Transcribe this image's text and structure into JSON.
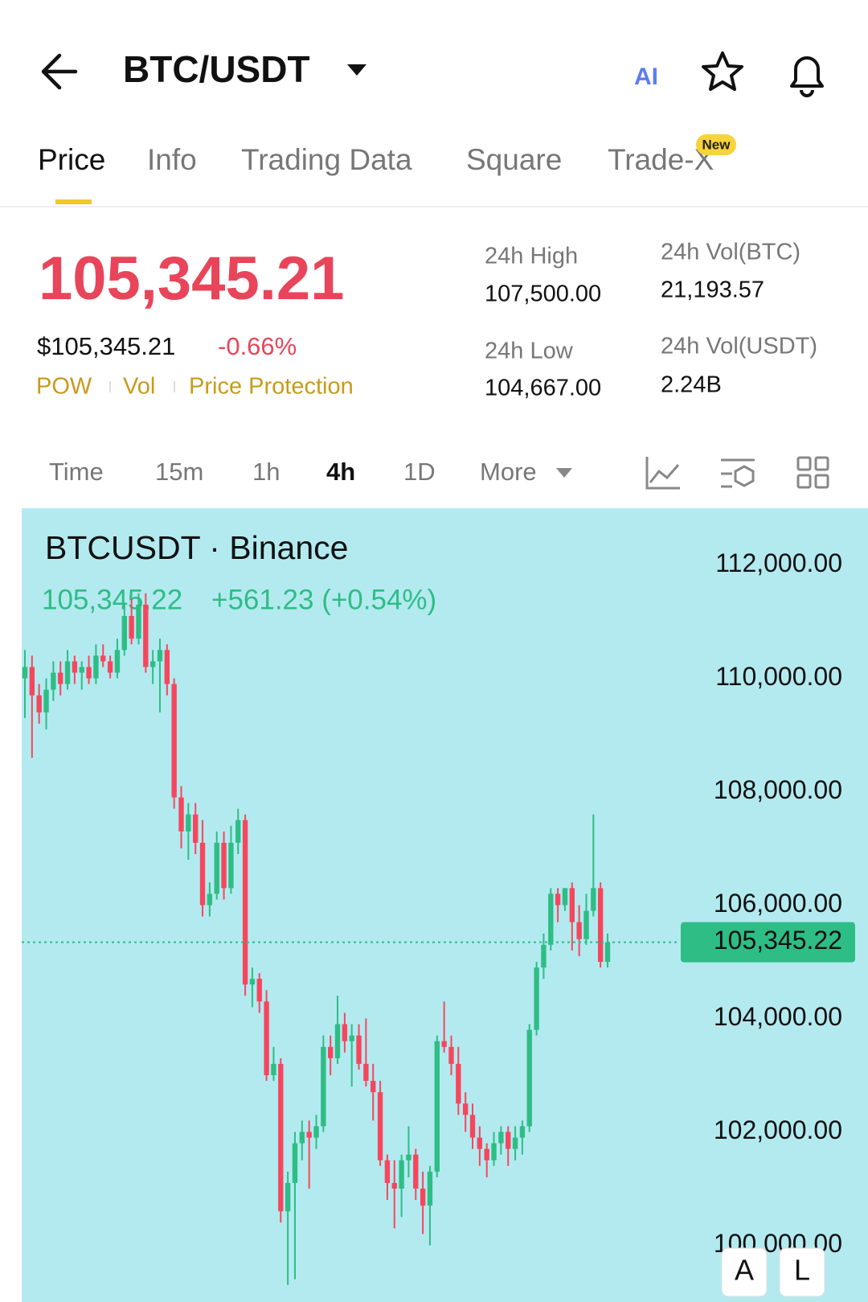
{
  "header": {
    "title": "BTC/USDT",
    "ai": "AI"
  },
  "tabs": [
    "Price",
    "Info",
    "Trading Data",
    "Square",
    "Trade-X"
  ],
  "tab_badge": "New",
  "ticker": {
    "price": "105,345.21",
    "usd_price": "$105,345.21",
    "change": "-0.66%",
    "tags": [
      "POW",
      "Vol",
      "Price Protection"
    ],
    "stats": [
      {
        "label": "24h High",
        "value": "107,500.00"
      },
      {
        "label": "24h Low",
        "value": "104,667.00"
      },
      {
        "label": "24h Vol(BTC)",
        "value": "21,193.57"
      },
      {
        "label": "24h Vol(USDT)",
        "value": "2.24B"
      }
    ]
  },
  "intervals": [
    "Time",
    "15m",
    "1h",
    "4h",
    "1D",
    "More"
  ],
  "chart_data": {
    "type": "candlestick",
    "title": "BTCUSDT · Binance",
    "last": "105,345.22",
    "change": "+561.23 (+0.54%)",
    "up_color": "#2ebd85",
    "down_color": "#f6465d",
    "background": "#b3eaf0",
    "grid": false,
    "ylim": [
      99000,
      113000
    ],
    "yticks": [
      {
        "value": 100000,
        "label": "100,000.00"
      },
      {
        "value": 102000,
        "label": "102,000.00"
      },
      {
        "value": 104000,
        "label": "104,000.00"
      },
      {
        "value": 106000,
        "label": "106,000.00"
      },
      {
        "value": 108000,
        "label": "108,000.00"
      },
      {
        "value": 110000,
        "label": "110,000.00"
      },
      {
        "value": 112000,
        "label": "112,000.00"
      }
    ],
    "current_price": {
      "value": 105345.22,
      "label": "105,345.22"
    },
    "candles": [
      [
        110000,
        110500,
        109300,
        110200
      ],
      [
        110200,
        110400,
        108600,
        109700
      ],
      [
        109700,
        109900,
        109200,
        109400
      ],
      [
        109400,
        110000,
        109100,
        109800
      ],
      [
        109800,
        110300,
        109600,
        110100
      ],
      [
        110100,
        110300,
        109700,
        109900
      ],
      [
        109900,
        110500,
        109800,
        110300
      ],
      [
        110300,
        110400,
        109900,
        110100
      ],
      [
        110100,
        110300,
        109800,
        110200
      ],
      [
        110200,
        110400,
        109900,
        110000
      ],
      [
        110000,
        110600,
        109900,
        110400
      ],
      [
        110400,
        110600,
        110200,
        110300
      ],
      [
        110300,
        110400,
        110000,
        110100
      ],
      [
        110100,
        110700,
        110000,
        110500
      ],
      [
        110500,
        111300,
        110400,
        111100
      ],
      [
        111100,
        111400,
        110600,
        110700
      ],
      [
        110700,
        111500,
        110600,
        111300
      ],
      [
        111300,
        111500,
        110100,
        110200
      ],
      [
        110200,
        110500,
        109900,
        110300
      ],
      [
        110300,
        110700,
        109400,
        110500
      ],
      [
        110500,
        110600,
        109700,
        109900
      ],
      [
        109900,
        110000,
        107700,
        107900
      ],
      [
        107900,
        108100,
        107000,
        107300
      ],
      [
        107300,
        107800,
        106800,
        107600
      ],
      [
        107600,
        107800,
        106900,
        107100
      ],
      [
        107100,
        107500,
        105800,
        106000
      ],
      [
        106000,
        106400,
        105800,
        106200
      ],
      [
        106200,
        107300,
        106100,
        107100
      ],
      [
        107100,
        107300,
        106100,
        106300
      ],
      [
        106300,
        107400,
        106200,
        107100
      ],
      [
        107100,
        107700,
        106900,
        107500
      ],
      [
        107500,
        107600,
        104400,
        104600
      ],
      [
        104600,
        104900,
        104200,
        104700
      ],
      [
        104700,
        104800,
        104100,
        104300
      ],
      [
        104300,
        104500,
        102900,
        103000
      ],
      [
        103000,
        103500,
        102900,
        103200
      ],
      [
        103200,
        103300,
        100400,
        100600
      ],
      [
        100600,
        101300,
        99300,
        101100
      ],
      [
        101100,
        102000,
        99400,
        101800
      ],
      [
        101800,
        102200,
        101500,
        102000
      ],
      [
        102000,
        102200,
        101000,
        101900
      ],
      [
        101900,
        102300,
        101700,
        102100
      ],
      [
        102100,
        103700,
        102000,
        103500
      ],
      [
        103500,
        103700,
        103000,
        103300
      ],
      [
        103300,
        104400,
        103200,
        103900
      ],
      [
        103900,
        104100,
        103400,
        103600
      ],
      [
        103600,
        103900,
        102800,
        103700
      ],
      [
        103700,
        103900,
        103100,
        103200
      ],
      [
        103200,
        104000,
        102800,
        102900
      ],
      [
        102900,
        103200,
        102200,
        102700
      ],
      [
        102700,
        102900,
        101400,
        101500
      ],
      [
        101500,
        101600,
        100800,
        101100
      ],
      [
        101100,
        101500,
        100300,
        101000
      ],
      [
        101000,
        101600,
        100500,
        101500
      ],
      [
        101500,
        102100,
        101200,
        101600
      ],
      [
        101600,
        101700,
        100800,
        101000
      ],
      [
        101000,
        101300,
        100200,
        100700
      ],
      [
        100700,
        101400,
        100000,
        101300
      ],
      [
        101300,
        103700,
        101200,
        103600
      ],
      [
        103600,
        104300,
        103400,
        103500
      ],
      [
        103500,
        103700,
        103000,
        103200
      ],
      [
        103200,
        103500,
        102300,
        102500
      ],
      [
        102500,
        102700,
        102000,
        102300
      ],
      [
        102300,
        102500,
        101700,
        101900
      ],
      [
        101900,
        102100,
        101400,
        101700
      ],
      [
        101700,
        101800,
        101200,
        101500
      ],
      [
        101500,
        102000,
        101400,
        101800
      ],
      [
        101800,
        102100,
        101600,
        102000
      ],
      [
        102000,
        102100,
        101400,
        101700
      ],
      [
        101700,
        102100,
        101500,
        101900
      ],
      [
        101900,
        102200,
        101600,
        102100
      ],
      [
        102100,
        103900,
        102000,
        103800
      ],
      [
        103800,
        105000,
        103700,
        104900
      ],
      [
        104900,
        105500,
        104700,
        105300
      ],
      [
        105300,
        106300,
        105200,
        106200
      ],
      [
        106200,
        106300,
        105700,
        106000
      ],
      [
        106000,
        106300,
        105900,
        106300
      ],
      [
        106300,
        106400,
        105200,
        105700
      ],
      [
        105700,
        106000,
        105100,
        105400
      ],
      [
        105400,
        106200,
        105300,
        105900
      ],
      [
        105900,
        107600,
        105800,
        106300
      ],
      [
        106300,
        106400,
        104900,
        105000
      ],
      [
        105000,
        105500,
        104900,
        105345.22
      ]
    ],
    "buttons": [
      "A",
      "L"
    ]
  }
}
